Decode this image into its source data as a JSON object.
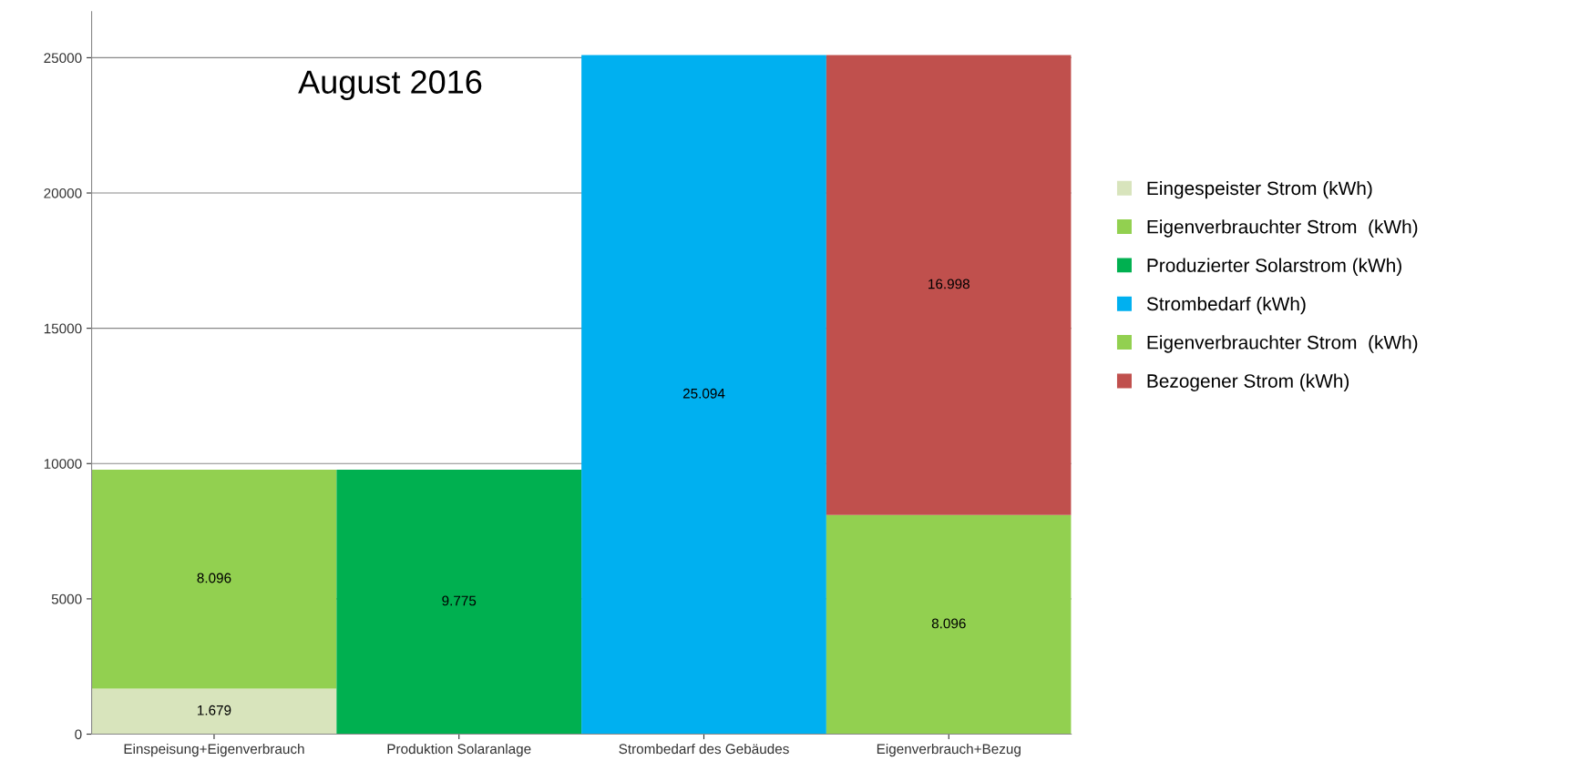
{
  "chart_data": {
    "type": "bar",
    "stacked": true,
    "categories": [
      "Einspeisung+Eigenverbrauch",
      "Produktion Solaranlage",
      "Strombedarf des Gebäudes",
      "Eigenverbrauch+Bezug"
    ],
    "series": [
      {
        "name": "Eingespeister Strom (kWh)",
        "color": "#d8e4bc",
        "values": [
          1679,
          null,
          null,
          null
        ],
        "value_labels": [
          "1.679",
          null,
          null,
          null
        ]
      },
      {
        "name": "Eigenverbrauchter Strom  (kWh)",
        "color": "#92d050",
        "values": [
          8096,
          null,
          null,
          null
        ],
        "value_labels": [
          "8.096",
          null,
          null,
          null
        ]
      },
      {
        "name": "Produzierter Solarstrom (kWh)",
        "color": "#00b050",
        "values": [
          null,
          9775,
          null,
          null
        ],
        "value_labels": [
          null,
          "9.775",
          null,
          null
        ]
      },
      {
        "name": "Strombedarf (kWh)",
        "color": "#00b0f0",
        "values": [
          null,
          null,
          25094,
          null
        ],
        "value_labels": [
          null,
          null,
          "25.094",
          null
        ]
      },
      {
        "name": "Eigenverbrauchter Strom  (kWh)",
        "color": "#92d050",
        "values": [
          null,
          null,
          null,
          8096
        ],
        "value_labels": [
          null,
          null,
          null,
          "8.096"
        ]
      },
      {
        "name": "Bezogener Strom (kWh)",
        "color": "#c0504d",
        "values": [
          null,
          null,
          null,
          16998
        ],
        "value_labels": [
          null,
          null,
          null,
          "16.998"
        ]
      }
    ],
    "ylim": [
      0,
      26700
    ],
    "yticks": [
      0,
      5000,
      10000,
      15000,
      20000,
      25000
    ],
    "grid": "y",
    "legend": "right",
    "annotations": [
      "August 2016"
    ]
  }
}
